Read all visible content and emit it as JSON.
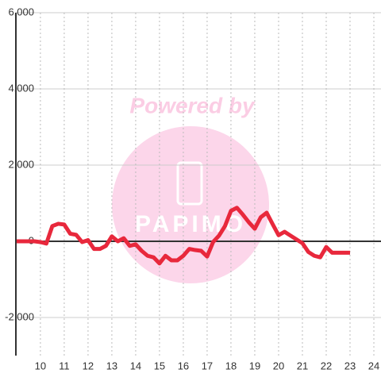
{
  "chart_data": {
    "type": "line",
    "watermark": "Powered by",
    "watermark_logo": "PAPIMO",
    "x": [
      9,
      9.25,
      9.5,
      9.75,
      10,
      10.25,
      10.5,
      10.75,
      11,
      11.25,
      11.5,
      11.75,
      12,
      12.25,
      12.5,
      12.75,
      13,
      13.25,
      13.5,
      13.75,
      14,
      14.25,
      14.5,
      14.75,
      15,
      15.25,
      15.5,
      15.75,
      16,
      16.25,
      16.5,
      16.75,
      17,
      17.25,
      17.5,
      17.75,
      18,
      18.25,
      18.5,
      18.75,
      19,
      19.25,
      19.5,
      19.75,
      20,
      20.25,
      20.5,
      20.75,
      21,
      21.25,
      21.5,
      21.75,
      22,
      22.25,
      22.5,
      22.75,
      23
    ],
    "series": [
      {
        "color": "#e8283c",
        "values": [
          0,
          0,
          0,
          0,
          -20,
          -60,
          400,
          460,
          440,
          200,
          170,
          -20,
          30,
          -200,
          -200,
          -120,
          130,
          0,
          80,
          -120,
          -80,
          -250,
          -380,
          -420,
          -580,
          -380,
          -500,
          -500,
          -380,
          -200,
          -230,
          -250,
          -400,
          -20,
          150,
          400,
          800,
          880,
          700,
          500,
          330,
          630,
          750,
          450,
          160,
          250,
          150,
          50,
          -50,
          -280,
          -380,
          -420,
          -150,
          -300,
          -300,
          -300,
          -300
        ]
      }
    ],
    "xlim": [
      8.97,
      24.3
    ],
    "xticks": [
      10,
      11,
      12,
      13,
      14,
      15,
      16,
      17,
      18,
      19,
      20,
      21,
      22,
      23,
      24
    ],
    "ylim": [
      -3000,
      6000
    ],
    "yticks": [
      {
        "value": -2000,
        "label": "-2,000"
      },
      0,
      {
        "value": 2000,
        "label": "2,000"
      },
      {
        "value": 4000,
        "label": "4,000"
      },
      {
        "value": 6000,
        "label": "6,000"
      }
    ],
    "grid": true
  }
}
